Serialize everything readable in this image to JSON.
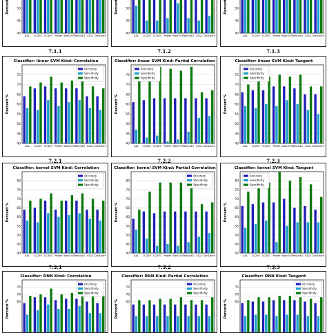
{
  "sublabels": [
    "7.1.1",
    "7.1.2",
    "7.1.3",
    "7.2.1",
    "7.2.2",
    "7.2.3",
    "7.3.1",
    "7.3.2",
    "7.3.3"
  ],
  "legend": [
    "Accuracy",
    "Sensitivity",
    "Specificity"
  ],
  "colors": {
    "accuracy": "#1f1fb8",
    "sensitivity": "#1fa0c8",
    "specificity": "#0c7a0c",
    "grid": "#d9d9d9",
    "border": "#222222"
  },
  "ylabel": "Percent %",
  "chart_data": [
    {
      "type": "bar",
      "title": "",
      "categories": [
        "AAL",
        "CC200",
        "CC400",
        "Power",
        "Basc197",
        "Basc444",
        "GICA",
        "DictLearn"
      ],
      "ylim": [
        40,
        63
      ],
      "yticks": [
        40,
        45,
        50,
        55,
        60
      ],
      "xtick_labels_visible": true,
      "series": [
        {
          "name": "Accuracy",
          "values": [
            63,
            63,
            63,
            63,
            63,
            63,
            63,
            63
          ]
        },
        {
          "name": "Sensitivity",
          "values": [
            55,
            55,
            56,
            55,
            56,
            55,
            55,
            54
          ]
        },
        {
          "name": "Specificity",
          "values": [
            63,
            63,
            63,
            63,
            63,
            63,
            63,
            63
          ]
        }
      ]
    },
    {
      "type": "bar",
      "title": "",
      "categories": [
        "AAL",
        "CC200",
        "CC400",
        "Power",
        "Basc197",
        "Basc444",
        "GICA",
        "DictLearn"
      ],
      "ylim": [
        40,
        63
      ],
      "yticks": [
        40,
        45,
        50,
        55,
        60
      ],
      "xtick_labels_visible": true,
      "series": [
        {
          "name": "Accuracy",
          "values": [
            58,
            60,
            63,
            63,
            63,
            63,
            63,
            63
          ]
        },
        {
          "name": "Sensitivity",
          "values": [
            51,
            45,
            45,
            46,
            52,
            46,
            45,
            47
          ]
        },
        {
          "name": "Specificity",
          "values": [
            63,
            63,
            63,
            63,
            63,
            63,
            63,
            63
          ]
        }
      ]
    },
    {
      "type": "bar",
      "title": "",
      "categories": [
        "AAL",
        "CC200",
        "CC400",
        "Power",
        "Basc197",
        "Basc444",
        "GICA",
        "DictLearn"
      ],
      "ylim": [
        40,
        63
      ],
      "yticks": [
        40,
        45,
        50,
        55,
        60
      ],
      "xtick_labels_visible": true,
      "series": [
        {
          "name": "Accuracy",
          "values": [
            61,
            62,
            63,
            63,
            63,
            63,
            63,
            63
          ]
        },
        {
          "name": "Sensitivity",
          "values": [
            57,
            56,
            58,
            57,
            58,
            57,
            56,
            56
          ]
        },
        {
          "name": "Specificity",
          "values": [
            63,
            63,
            63,
            63,
            63,
            63,
            63,
            63
          ]
        }
      ]
    },
    {
      "type": "bar",
      "title": "Classifier: linear SVM  Kind: Correlation",
      "categories": [
        "AAL",
        "CC200",
        "CC400",
        "Power",
        "Basc197",
        "Basc444",
        "GICA",
        "DictLearn"
      ],
      "ylim": [
        40,
        80
      ],
      "yticks": [
        40,
        45,
        50,
        55,
        60,
        65,
        70,
        75
      ],
      "xtick_labels_visible": true,
      "legend_position": "top-right",
      "series": [
        {
          "name": "Accuracy",
          "values": [
            64,
            68,
            69,
            68,
            68,
            68,
            64,
            64
          ]
        },
        {
          "name": "Sensitivity",
          "values": [
            58,
            57,
            62,
            59,
            61,
            62,
            58,
            57
          ]
        },
        {
          "name": "Specificity",
          "values": [
            69,
            71,
            74,
            71,
            72,
            73,
            69,
            68
          ]
        }
      ]
    },
    {
      "type": "bar",
      "title": "Classifier: linear SVM  Kind: Partial Correlation",
      "categories": [
        "AAL",
        "CC200",
        "CC400",
        "Power",
        "Basc197",
        "Basc444",
        "GICA",
        "DictLearn"
      ],
      "ylim": [
        40,
        80
      ],
      "yticks": [
        40,
        45,
        50,
        55,
        60,
        65,
        70,
        75
      ],
      "xtick_labels_visible": true,
      "legend_position": "top-left",
      "series": [
        {
          "name": "Accuracy",
          "values": [
            61,
            62,
            63,
            63,
            63,
            63,
            63,
            63
          ]
        },
        {
          "name": "Sensitivity",
          "values": [
            47,
            43,
            44,
            41,
            42,
            46,
            53,
            54
          ]
        },
        {
          "name": "Specificity",
          "values": [
            74,
            75,
            79,
            78,
            77,
            79,
            66,
            67
          ]
        }
      ]
    },
    {
      "type": "bar",
      "title": "Classifier: linear SVM  Kind: Tangent",
      "categories": [
        "AAL",
        "CC200",
        "CC400",
        "Power",
        "Basc197",
        "Basc444",
        "GICA",
        "DictLearn"
      ],
      "ylim": [
        40,
        80
      ],
      "yticks": [
        40,
        45,
        50,
        55,
        60,
        65,
        70,
        75
      ],
      "xtick_labels_visible": true,
      "legend_position": "top-left",
      "series": [
        {
          "name": "Accuracy",
          "values": [
            66,
            67,
            67,
            69,
            69,
            68,
            65,
            65
          ]
        },
        {
          "name": "Sensitivity",
          "values": [
            59,
            58,
            60,
            59,
            62,
            60,
            57,
            55
          ]
        },
        {
          "name": "Specificity",
          "values": [
            70,
            73,
            74,
            75,
            74,
            75,
            69,
            69
          ]
        }
      ]
    },
    {
      "type": "bar",
      "title": "Classifier: kernel SVM  Kind: Correlation",
      "categories": [
        "AAL",
        "CC200",
        "CC400",
        "Power",
        "Basc197",
        "Basc444",
        "GICA",
        "DictLearn"
      ],
      "ylim": [
        40,
        85
      ],
      "yticks": [
        40,
        45,
        50,
        55,
        60,
        65,
        70,
        75,
        80
      ],
      "xtick_labels_visible": true,
      "legend_position": "top-right",
      "series": [
        {
          "name": "Accuracy",
          "values": [
            64,
            65,
            69,
            64,
            69,
            69,
            64,
            64
          ]
        },
        {
          "name": "Sensitivity",
          "values": [
            58,
            57,
            62,
            60,
            61,
            62,
            59,
            58
          ]
        },
        {
          "name": "Specificity",
          "values": [
            69,
            70,
            73,
            69,
            72,
            73,
            70,
            69
          ]
        }
      ]
    },
    {
      "type": "bar",
      "title": "Classifier: kernel SVM  Kind: Partial Correlation",
      "categories": [
        "AAL",
        "CC200",
        "CC400",
        "Power",
        "Basc197",
        "Basc444",
        "GICA",
        "DictLearn"
      ],
      "ylim": [
        40,
        85
      ],
      "yticks": [
        40,
        45,
        50,
        55,
        60,
        65,
        70,
        75,
        80
      ],
      "xtick_labels_visible": true,
      "legend_position": "top-right",
      "series": [
        {
          "name": "Accuracy",
          "values": [
            59,
            63,
            62,
            63,
            63,
            63,
            63,
            63
          ]
        },
        {
          "name": "Sensitivity",
          "values": [
            53,
            48,
            44,
            45,
            44,
            46,
            49,
            51
          ]
        },
        {
          "name": "Specificity",
          "values": [
            64,
            74,
            79,
            79,
            79,
            82,
            67,
            68
          ]
        }
      ]
    },
    {
      "type": "bar",
      "title": "Classifier: kernel SVM  Kind: Tangent",
      "categories": [
        "AAL",
        "CC200",
        "CC400",
        "Power",
        "Basc197",
        "Basc444",
        "GICA",
        "DictLearn"
      ],
      "ylim": [
        40,
        85
      ],
      "yticks": [
        40,
        45,
        50,
        55,
        60,
        65,
        70,
        75,
        80
      ],
      "xtick_labels_visible": true,
      "legend_position": "top-left",
      "series": [
        {
          "name": "Accuracy",
          "values": [
            66,
            67,
            68,
            68,
            70,
            65,
            66,
            64
          ]
        },
        {
          "name": "Sensitivity",
          "values": [
            54,
            56,
            58,
            46,
            55,
            57,
            57,
            57
          ]
        },
        {
          "name": "Specificity",
          "values": [
            74,
            78,
            79,
            85,
            80,
            82,
            78,
            71
          ]
        }
      ]
    },
    {
      "type": "bar",
      "title": "Classifier: DNN  Kind: Correlation",
      "categories": [
        "AAL",
        "CC200",
        "CC400",
        "Power",
        "Basc197",
        "Basc444",
        "GICA",
        "DictLearn"
      ],
      "ylim": [
        40,
        80
      ],
      "yticks": [
        65,
        70,
        75
      ],
      "xtick_labels_visible": false,
      "legend_position": "top-right",
      "series": [
        {
          "name": "Accuracy",
          "values": [
            64,
            68,
            68,
            66,
            67,
            67,
            65,
            64
          ]
        },
        {
          "name": "Sensitivity",
          "values": [
            56,
            59,
            63,
            60,
            60,
            62,
            57,
            57
          ]
        },
        {
          "name": "Specificity",
          "values": [
            69,
            70,
            74,
            70,
            71,
            73,
            70,
            69
          ]
        }
      ]
    },
    {
      "type": "bar",
      "title": "Classifier: DNN  Kind: Partial Correlation",
      "categories": [
        "AAL",
        "CC200",
        "CC400",
        "Power",
        "Basc197",
        "Basc444",
        "GICA",
        "DictLearn"
      ],
      "ylim": [
        40,
        80
      ],
      "yticks": [
        65,
        70,
        75
      ],
      "xtick_labels_visible": false,
      "legend_position": "top-right",
      "series": [
        {
          "name": "Accuracy",
          "values": [
            63,
            63,
            63,
            63,
            63,
            63,
            63,
            63
          ]
        },
        {
          "name": "Sensitivity",
          "values": [
            55,
            55,
            55,
            55,
            55,
            55,
            55,
            55
          ]
        },
        {
          "name": "Specificity",
          "values": [
            66,
            66,
            67,
            67,
            68,
            66,
            66,
            68
          ]
        }
      ]
    },
    {
      "type": "bar",
      "title": "Classifier: DNN  Kind: Tangent",
      "categories": [
        "AAL",
        "CC200",
        "CC400",
        "Power",
        "Basc197",
        "Basc444",
        "GICA",
        "DictLearn"
      ],
      "ylim": [
        40,
        80
      ],
      "yticks": [
        65,
        70,
        75
      ],
      "xtick_labels_visible": false,
      "legend_position": "top-right",
      "series": [
        {
          "name": "Accuracy",
          "values": [
            64,
            65,
            65,
            66,
            66,
            66,
            65,
            64
          ]
        },
        {
          "name": "Sensitivity",
          "values": [
            55,
            56,
            56,
            55,
            56,
            56,
            55,
            55
          ]
        },
        {
          "name": "Specificity",
          "values": [
            66,
            68,
            68,
            69,
            69,
            68,
            67,
            68
          ]
        }
      ]
    }
  ]
}
